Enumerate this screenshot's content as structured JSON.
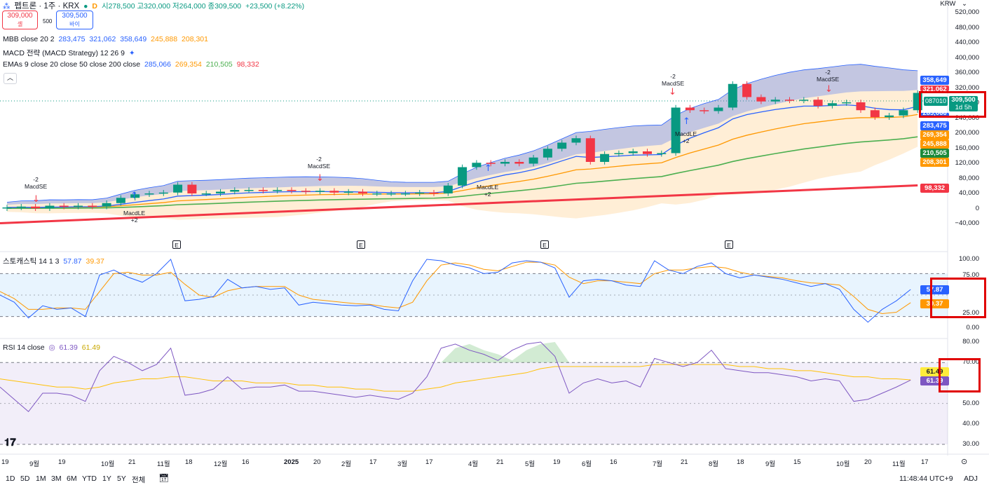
{
  "header": {
    "title": "펩트론 · 1주 · KRX",
    "badge_d": "D",
    "ohlc": "시278,500 고320,000 저264,000 종309,500",
    "change": "+23,500 (+8.22%)",
    "currency": "KRW"
  },
  "trade": {
    "sell_price": "309,000",
    "sell_label": "셀",
    "spread": "500",
    "buy_price": "309,500",
    "buy_label": "바이"
  },
  "indicators": {
    "mbb_name": "MBB close 20 2",
    "mbb_vals": [
      "283,475",
      "321,062",
      "358,649",
      "245,888",
      "208,301"
    ],
    "macd_name": "MACD 전략 (MACD Strategy) 12 26 9",
    "emas_name": "EMAs 9 close 20 close 50 close 200 close",
    "emas_vals": [
      "285,066",
      "269,354",
      "210,505",
      "98,332"
    ],
    "stoch_name": "스토캐스틱 14 1 3",
    "stoch_vals": [
      "57.87",
      "39.37"
    ],
    "rsi_name": "RSI 14 close",
    "rsi_vals": [
      "61.39",
      "61.49"
    ]
  },
  "price_axis": [
    "520,000",
    "480,000",
    "440,000",
    "400,000",
    "360,000",
    "320,000",
    "280,000",
    "240,000",
    "200,000",
    "160,000",
    "120,000",
    "80,000",
    "40,000",
    "0",
    "−40,000"
  ],
  "price_tags": {
    "mbb_upper": "358,649",
    "mbb_mid_partial": "321,062",
    "symbol": "087010",
    "last": "309,500",
    "countdown": "1d 5h",
    "partial": "285,066",
    "ema_blue": "283,475",
    "ema_orange": "269,354",
    "mbb_lower": "245,888",
    "ema50": "210,505",
    "lower2": "208,301",
    "ema200": "98,332"
  },
  "stoch_axis": [
    "100.00",
    "75.00",
    "25.00",
    "0.00"
  ],
  "stoch_tags": [
    "57.87",
    "39.37"
  ],
  "rsi_axis": [
    "80.00",
    "70.00",
    "50.00",
    "40.00",
    "30.00"
  ],
  "rsi_tags": [
    "61.49",
    "61.39"
  ],
  "time_axis": [
    "19",
    "9월",
    "19",
    "10월",
    "21",
    "11월",
    "18",
    "12월",
    "16",
    "2025",
    "20",
    "2월",
    "17",
    "3월",
    "17",
    "4월",
    "21",
    "5월",
    "19",
    "6월",
    "16",
    "7월",
    "21",
    "8월",
    "18",
    "9월",
    "15",
    "10월",
    "20",
    "11월",
    "17"
  ],
  "signals": {
    "macd_se": "MacdSE",
    "macd_le": "MacdLE",
    "minus2": "-2",
    "plus2": "+2",
    "earnings": "E"
  },
  "bottom": {
    "timeframes": [
      "1D",
      "5D",
      "1M",
      "3M",
      "6M",
      "YTD",
      "1Y",
      "5Y",
      "전체"
    ],
    "clock": "11:48:44 UTC+9",
    "adj": "ADJ"
  },
  "colors": {
    "up": "#089981",
    "down": "#f23645",
    "mbb": "#2962ff",
    "ema20": "#ff9800",
    "ema50": "#4caf50",
    "ema200": "#f23645",
    "rsi": "#7e57c2"
  },
  "chart_data": [
    {
      "type": "candlestick",
      "title": "펩트론 · 1주 · KRX",
      "ylim": [
        -40000,
        520000
      ],
      "closes_approx": [
        48000,
        50000,
        46000,
        52000,
        50000,
        52000,
        50000,
        58000,
        70000,
        78000,
        80000,
        82000,
        100000,
        80000,
        80000,
        84000,
        88000,
        88000,
        86000,
        88000,
        86000,
        84000,
        86000,
        82000,
        84000,
        80000,
        80000,
        80000,
        80000,
        82000,
        80000,
        98000,
        140000,
        150000,
        148000,
        152000,
        148000,
        162000,
        182000,
        196000,
        206000,
        152000,
        170000,
        172000,
        176000,
        170000,
        172000,
        276000,
        270000,
        268000,
        276000,
        330000,
        300000,
        290000,
        294000,
        292000,
        294000,
        280000,
        286000,
        288000,
        270000,
        254000,
        258000,
        270000,
        309500
      ]
    },
    {
      "type": "line",
      "title": "스토캐스틱 14 1 3",
      "ylim": [
        0,
        100
      ],
      "series": [
        {
          "name": "%K",
          "last": 57.87
        },
        {
          "name": "%D",
          "last": 39.37
        }
      ]
    },
    {
      "type": "line",
      "title": "RSI 14 close",
      "ylim": [
        30,
        80
      ],
      "series": [
        {
          "name": "RSI",
          "last": 61.39
        },
        {
          "name": "MA",
          "last": 61.49
        }
      ]
    }
  ]
}
